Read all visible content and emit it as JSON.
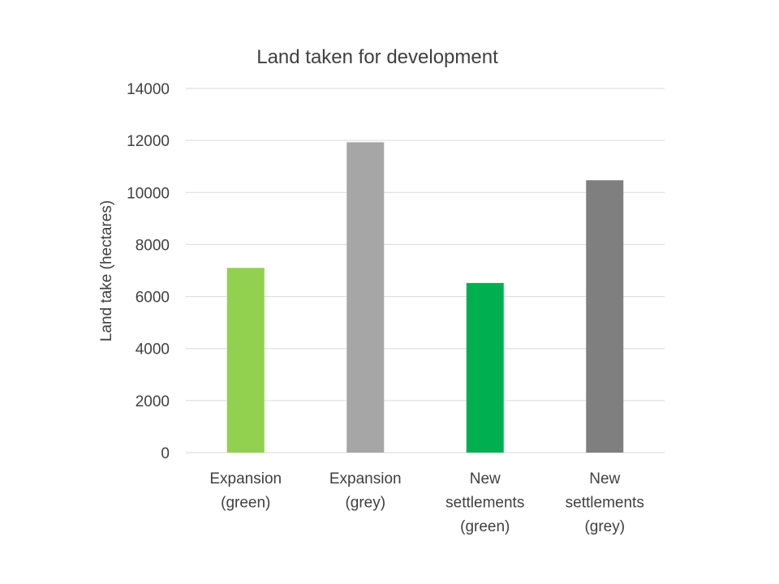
{
  "chart_data": {
    "type": "bar",
    "title": "Land taken for development",
    "xlabel": "",
    "ylabel": "Land take (hectares)",
    "categories": [
      [
        "Expansion",
        "(green)"
      ],
      [
        "Expansion",
        "(grey)"
      ],
      [
        "New",
        "settlements",
        "(green)"
      ],
      [
        "New",
        "settlements",
        "(grey)"
      ]
    ],
    "values": [
      7100,
      11930,
      6520,
      10470
    ],
    "colors": [
      "#92d050",
      "#a6a6a6",
      "#00b050",
      "#7f7f7f"
    ],
    "ylim": [
      0,
      14000
    ],
    "yticks": [
      0,
      2000,
      4000,
      6000,
      8000,
      10000,
      12000,
      14000
    ],
    "grid": true,
    "legend": "none"
  }
}
